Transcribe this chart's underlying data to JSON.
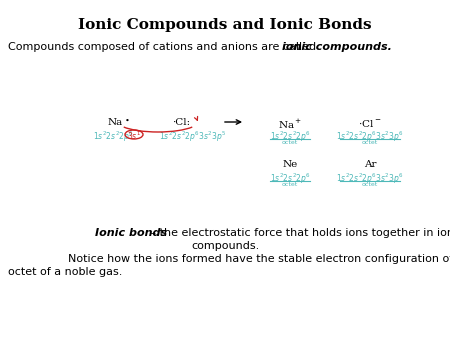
{
  "title": "Ionic Compounds and Ionic Bonds",
  "subtitle_plain": "Compounds composed of cations and anions are called ",
  "subtitle_italic": "ionic compounds.",
  "bg_color": "#ffffff",
  "text_color": "#000000",
  "cyan_color": "#4db8b8",
  "red_color": "#cc2222",
  "bottom_bold": "Ionic bonds",
  "bottom_rest": " – the electrostatic force that holds ions together in ionic",
  "bottom_line2": "compounds.",
  "bottom_line3": "        Notice how the ions formed have the stable electron configuration of the",
  "bottom_line4": " octet of a noble gas."
}
